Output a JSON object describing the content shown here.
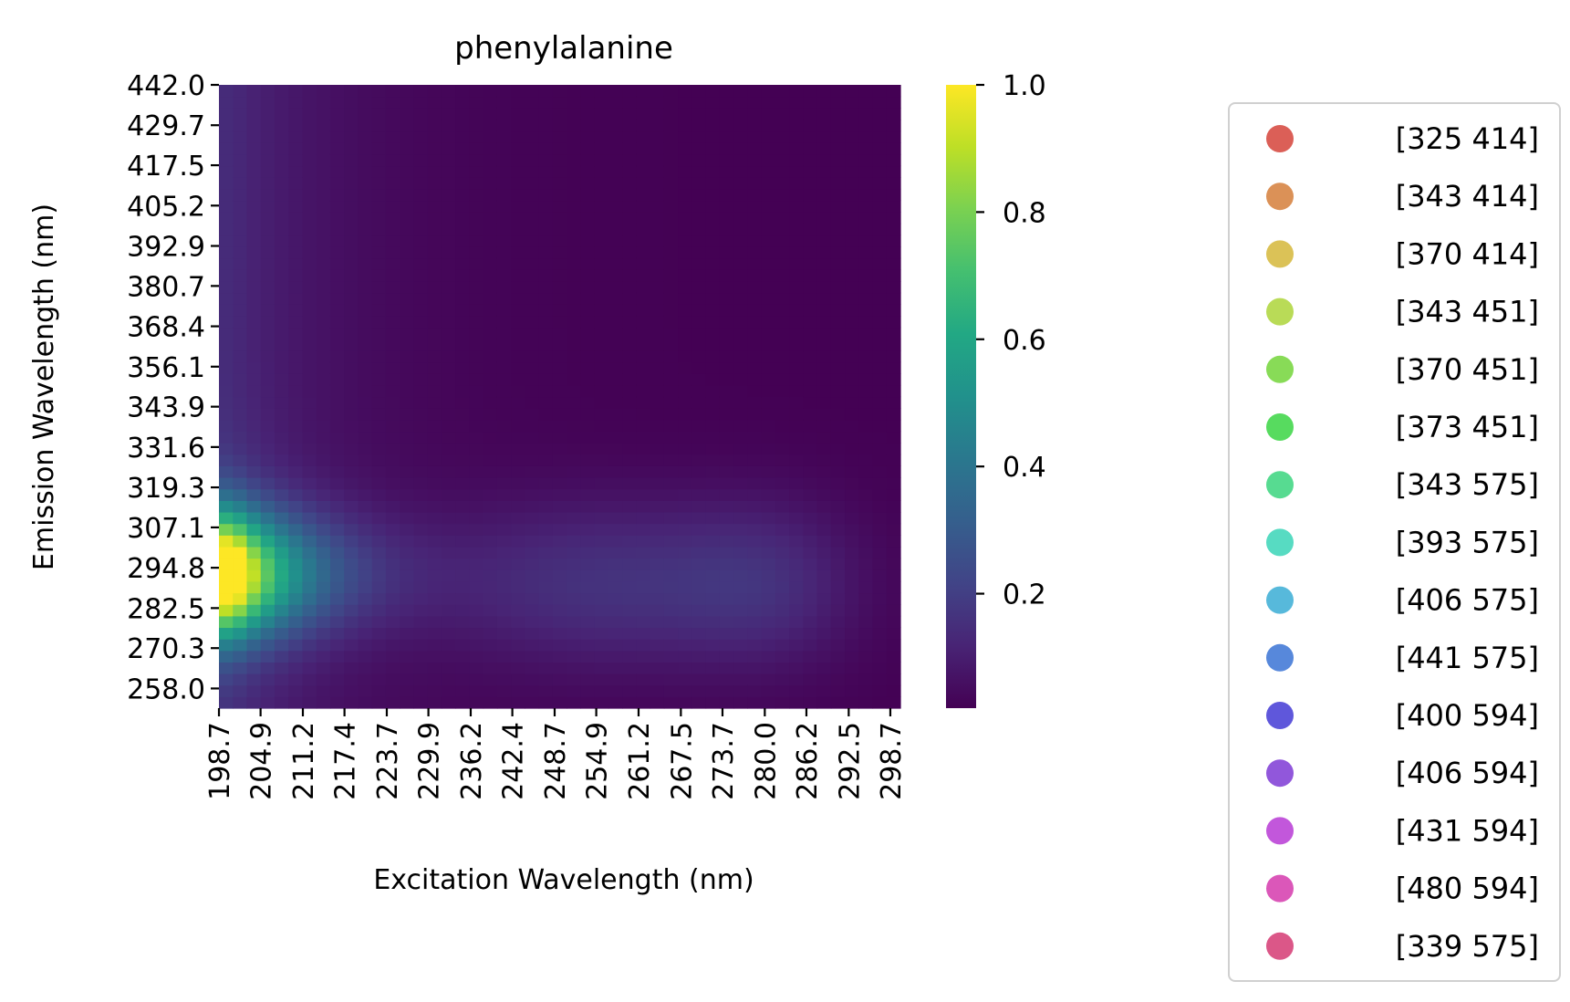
{
  "chart_data": {
    "type": "heatmap",
    "title": "phenylalanine",
    "xlabel": "Excitation Wavelength (nm)",
    "ylabel": "Emission Wavelength (nm)",
    "x_tick_labels": [
      "198.7",
      "204.9",
      "211.2",
      "217.4",
      "223.7",
      "229.9",
      "236.2",
      "242.4",
      "248.7",
      "254.9",
      "261.2",
      "267.5",
      "273.7",
      "280.0",
      "286.2",
      "292.5",
      "298.7"
    ],
    "y_tick_labels": [
      "442.0",
      "429.7",
      "417.5",
      "405.2",
      "392.9",
      "380.7",
      "368.4",
      "356.1",
      "343.9",
      "331.6",
      "319.3",
      "307.1",
      "294.8",
      "282.5",
      "270.3",
      "258.0"
    ],
    "x_range": [
      198.7,
      300.2
    ],
    "y_range": [
      252,
      442
    ],
    "peak": {
      "excitation": 200,
      "emission": 293,
      "value": 1.0
    },
    "colorbar": {
      "range": [
        0.02,
        1.0
      ],
      "ticks": [
        "1.0",
        "0.8",
        "0.6",
        "0.4",
        "0.2"
      ],
      "colormap": "viridis"
    },
    "legend": {
      "position": "right",
      "entries": [
        {
          "label": "[325 414]",
          "color": "#db5f57"
        },
        {
          "label": "[343 414]",
          "color": "#db9157"
        },
        {
          "label": "[370 414]",
          "color": "#dbc257"
        },
        {
          "label": "[343 451]",
          "color": "#b9db57"
        },
        {
          "label": "[370 451]",
          "color": "#88db57"
        },
        {
          "label": "[373 451]",
          "color": "#57db5f"
        },
        {
          "label": "[343 575]",
          "color": "#57db91"
        },
        {
          "label": "[393 575]",
          "color": "#57dbc2"
        },
        {
          "label": "[406 575]",
          "color": "#57b9db"
        },
        {
          "label": "[441 575]",
          "color": "#5788db"
        },
        {
          "label": "[400 594]",
          "color": "#5f57db"
        },
        {
          "label": "[406 594]",
          "color": "#9157db"
        },
        {
          "label": "[431 594]",
          "color": "#c257db"
        },
        {
          "label": "[480 594]",
          "color": "#db57b9"
        },
        {
          "label": "[339 575]",
          "color": "#db5788"
        }
      ]
    }
  }
}
